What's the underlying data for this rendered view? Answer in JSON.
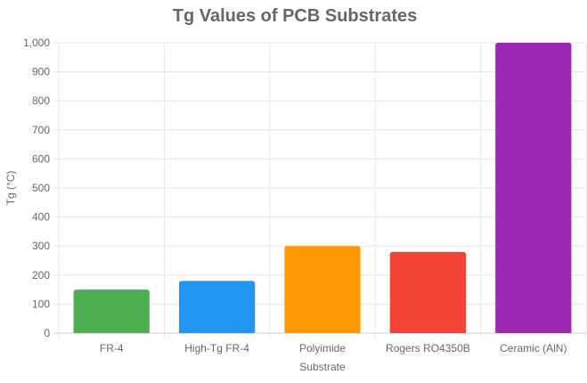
{
  "chart_data": {
    "type": "bar",
    "title": "Tg Values of PCB Substrates",
    "xlabel": "Substrate",
    "ylabel": "Tg (°C)",
    "categories": [
      "FR-4",
      "High-Tg FR-4",
      "Polyimide",
      "Rogers RO4350B",
      "Ceramic (AlN)"
    ],
    "values": [
      150,
      180,
      300,
      280,
      1000
    ],
    "colors": [
      "#4caf50",
      "#2196f3",
      "#ff9800",
      "#f44336",
      "#9c27b0"
    ],
    "ylim": [
      0,
      1000
    ],
    "yticks": [
      "0",
      "100",
      "200",
      "300",
      "400",
      "500",
      "600",
      "700",
      "800",
      "900",
      "1,000"
    ],
    "grid": true,
    "legend": "none"
  }
}
